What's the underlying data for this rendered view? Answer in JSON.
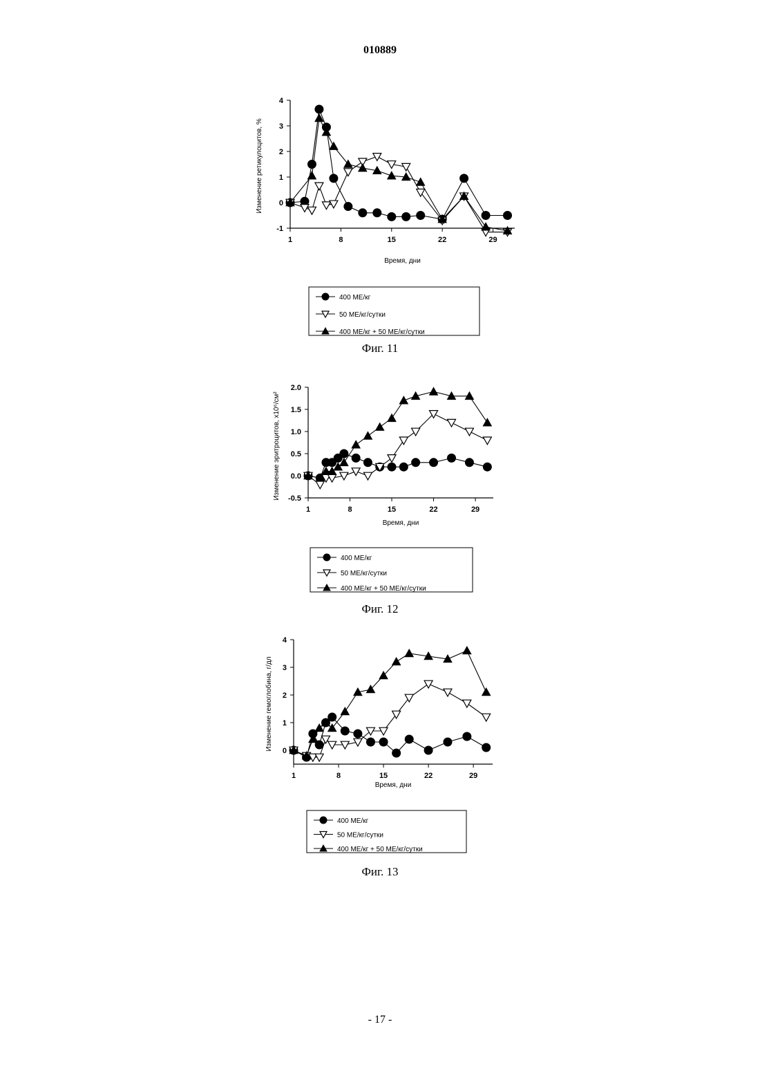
{
  "document": {
    "number": "010889",
    "page": "- 17 -"
  },
  "chart_data": [
    {
      "type": "line",
      "caption": "Фиг. 11",
      "xlabel": "Время, дни",
      "ylabel": "Изменение ретикулоцитов, %",
      "xlim": [
        1,
        32
      ],
      "ylim": [
        -1,
        4
      ],
      "xticks": [
        "1",
        "8",
        "15",
        "22",
        "29"
      ],
      "yticks": [
        "4",
        "3",
        "2",
        "1",
        "0",
        "-1"
      ],
      "legend_position": "below",
      "series": [
        {
          "name": "400 МЕ/кг",
          "marker": "circle",
          "x": [
            1,
            3,
            4,
            5,
            6,
            7,
            9,
            11,
            13,
            15,
            17,
            19,
            22,
            25,
            28,
            31
          ],
          "y": [
            0,
            0.05,
            1.5,
            3.65,
            2.95,
            0.95,
            -0.15,
            -0.4,
            -0.4,
            -0.55,
            -0.55,
            -0.5,
            -0.65,
            0.95,
            -0.5,
            -0.5
          ]
        },
        {
          "name": "50 МЕ/кг/сутки",
          "marker": "triangle-down",
          "x": [
            1,
            3,
            4,
            5,
            6,
            7,
            9,
            11,
            13,
            15,
            17,
            19,
            22,
            25,
            28,
            31
          ],
          "y": [
            0,
            -0.2,
            -0.3,
            0.65,
            -0.1,
            -0.05,
            1.2,
            1.6,
            1.8,
            1.5,
            1.4,
            0.4,
            -0.7,
            0.25,
            -1.15,
            -1.15
          ]
        },
        {
          "name": "400 МЕ/кг + 50 МЕ/кг/сутки",
          "marker": "triangle-up",
          "x": [
            1,
            4,
            5,
            6,
            7,
            9,
            11,
            13,
            15,
            17,
            19,
            22,
            25,
            28,
            31
          ],
          "y": [
            0,
            1.05,
            3.3,
            2.75,
            2.2,
            1.5,
            1.35,
            1.25,
            1.05,
            1.0,
            0.8,
            -0.65,
            0.25,
            -0.95,
            -1.1
          ]
        }
      ]
    },
    {
      "type": "line",
      "caption": "Фиг. 12",
      "xlabel": "Время, дни",
      "ylabel": "Изменение эритроцитов, x10⁶/см²",
      "xlim": [
        1,
        32
      ],
      "ylim": [
        -0.5,
        2.0
      ],
      "xticks": [
        "1",
        "8",
        "15",
        "22",
        "29"
      ],
      "yticks": [
        "2.0",
        "1.5",
        "1.0",
        "0.5",
        "0.0",
        "-0.5"
      ],
      "legend_position": "below",
      "series": [
        {
          "name": "400 МЕ/кг",
          "marker": "circle",
          "x": [
            1,
            3,
            4,
            5,
            6,
            7,
            9,
            11,
            13,
            15,
            17,
            19,
            22,
            25,
            28,
            31
          ],
          "y": [
            0,
            -0.05,
            0.3,
            0.3,
            0.4,
            0.5,
            0.4,
            0.3,
            0.2,
            0.2,
            0.2,
            0.3,
            0.3,
            0.4,
            0.3,
            0.2
          ]
        },
        {
          "name": "50 МЕ/кг/сутки",
          "marker": "triangle-down",
          "x": [
            1,
            3,
            4,
            5,
            7,
            9,
            11,
            13,
            15,
            17,
            19,
            22,
            25,
            28,
            31
          ],
          "y": [
            0,
            -0.2,
            -0.05,
            -0.05,
            0.0,
            0.1,
            0.0,
            0.2,
            0.4,
            0.8,
            1.0,
            1.4,
            1.2,
            1.0,
            0.8
          ]
        },
        {
          "name": "400 МЕ/кг + 50 МЕ/кг/сутки",
          "marker": "triangle-up",
          "x": [
            1,
            3,
            4,
            5,
            6,
            7,
            9,
            11,
            13,
            15,
            17,
            19,
            22,
            25,
            28,
            31
          ],
          "y": [
            0,
            -0.05,
            0.1,
            0.1,
            0.2,
            0.3,
            0.7,
            0.9,
            1.1,
            1.3,
            1.7,
            1.8,
            1.9,
            1.8,
            1.8,
            1.2
          ]
        }
      ]
    },
    {
      "type": "line",
      "caption": "Фиг. 13",
      "xlabel": "Время, дни",
      "ylabel": "Изменение гемоглобина, г/дл",
      "xlim": [
        1,
        32
      ],
      "ylim": [
        -0.5,
        4
      ],
      "xticks": [
        "1",
        "8",
        "15",
        "22",
        "29"
      ],
      "yticks": [
        "4",
        "3",
        "2",
        "1",
        "0"
      ],
      "legend_position": "below",
      "series": [
        {
          "name": "400 МЕ/кг",
          "marker": "circle",
          "x": [
            1,
            3,
            4,
            5,
            6,
            7,
            9,
            11,
            13,
            15,
            17,
            19,
            22,
            25,
            28,
            31
          ],
          "y": [
            0,
            -0.25,
            0.6,
            0.2,
            1.0,
            1.2,
            0.7,
            0.6,
            0.3,
            0.3,
            -0.1,
            0.4,
            0.0,
            0.3,
            0.5,
            0.1
          ]
        },
        {
          "name": "50 МЕ/кг/сутки",
          "marker": "triangle-down",
          "x": [
            1,
            3,
            4,
            5,
            6,
            7,
            9,
            11,
            13,
            15,
            17,
            19,
            22,
            25,
            28,
            31
          ],
          "y": [
            0,
            -0.2,
            -0.25,
            -0.25,
            0.4,
            0.2,
            0.2,
            0.3,
            0.7,
            0.7,
            1.3,
            1.9,
            2.4,
            2.1,
            1.7,
            1.2
          ]
        },
        {
          "name": "400 МЕ/кг + 50 МЕ/кг/сутки",
          "marker": "triangle-up",
          "x": [
            1,
            3,
            4,
            5,
            6,
            7,
            9,
            11,
            13,
            15,
            17,
            19,
            22,
            25,
            28,
            31
          ],
          "y": [
            0,
            -0.2,
            0.4,
            0.8,
            1.0,
            0.8,
            1.4,
            2.1,
            2.2,
            2.7,
            3.2,
            3.5,
            3.4,
            3.3,
            3.6,
            2.1
          ]
        }
      ]
    }
  ]
}
